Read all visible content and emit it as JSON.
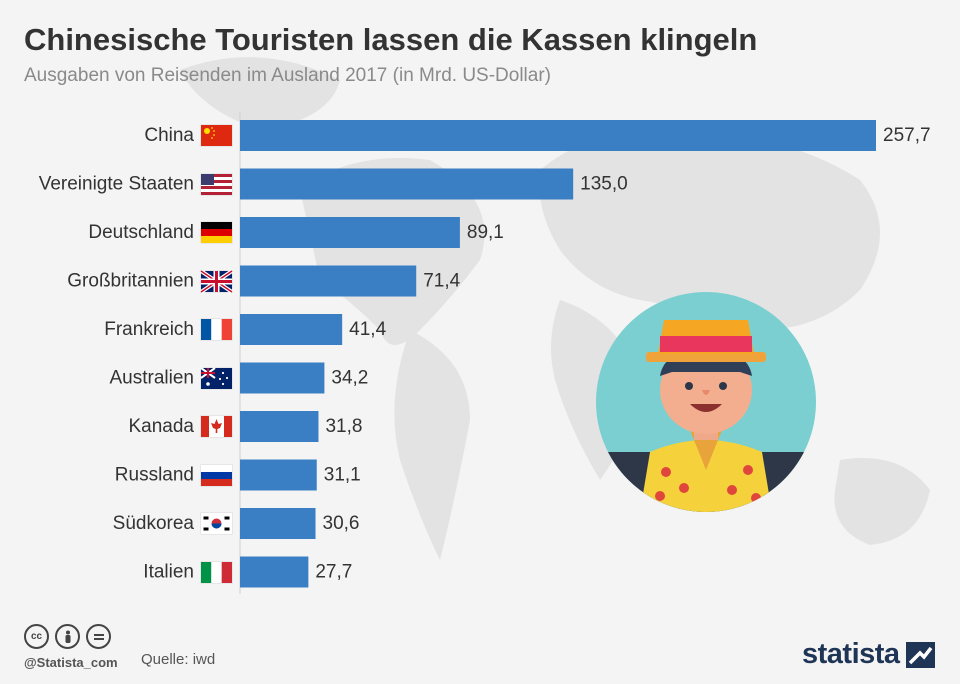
{
  "header": {
    "title": "Chinesische Touristen lassen die Kassen klingeln",
    "subtitle": "Ausgaben von Reisenden im Ausland 2017 (in Mrd. US-Dollar)"
  },
  "chart_data": {
    "type": "bar",
    "orientation": "horizontal",
    "categories": [
      "China",
      "Vereinigte Staaten",
      "Deutschland",
      "Großbritannien",
      "Frankreich",
      "Australien",
      "Kanada",
      "Russland",
      "Südkorea",
      "Italien"
    ],
    "values": [
      257.7,
      135.0,
      89.1,
      71.4,
      41.4,
      34.2,
      31.8,
      31.1,
      30.6,
      27.7
    ],
    "value_labels": [
      "257,7",
      "135,0",
      "89,1",
      "71,4",
      "41,4",
      "34,2",
      "31,8",
      "31,1",
      "30,6",
      "27,7"
    ],
    "xlim": [
      0,
      257.7
    ],
    "bar_color": "#3a7ec4",
    "grid": false,
    "flags": [
      "china-flag-icon",
      "usa-flag-icon",
      "germany-flag-icon",
      "uk-flag-icon",
      "france-flag-icon",
      "australia-flag-icon",
      "canada-flag-icon",
      "russia-flag-icon",
      "south-korea-flag-icon",
      "italy-flag-icon"
    ]
  },
  "illustration": {
    "icon": "tourist-with-hat-icon"
  },
  "footer": {
    "handle": "@Statista_com",
    "source": "Quelle: iwd",
    "brand": "statista",
    "license_icons": [
      "cc-icon",
      "by-icon",
      "nd-icon"
    ]
  }
}
